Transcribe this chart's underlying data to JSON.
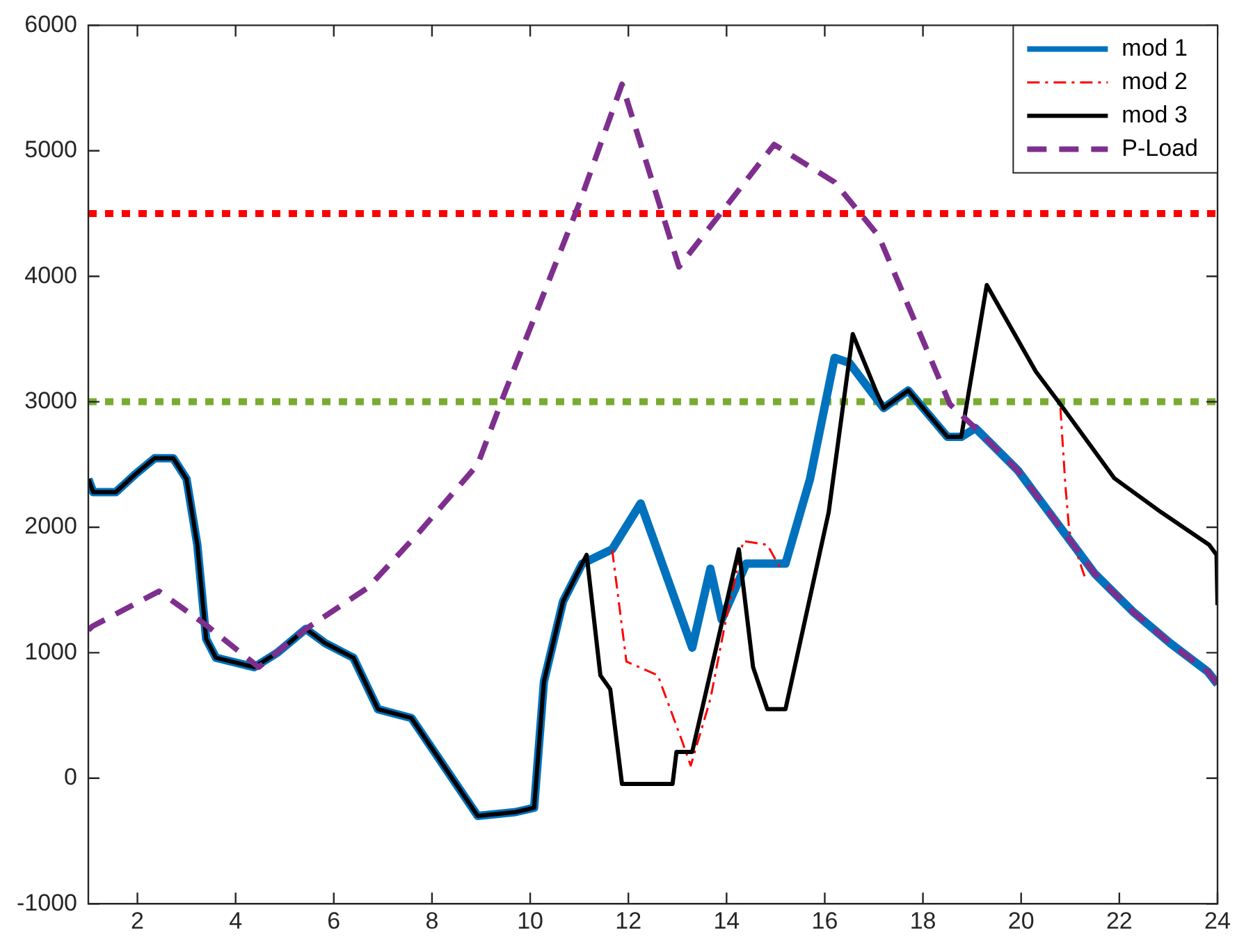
{
  "chart_data": {
    "type": "line",
    "xlim": [
      1,
      24
    ],
    "xticks": [
      2,
      4,
      6,
      8,
      10,
      12,
      14,
      16,
      18,
      20,
      22,
      24
    ],
    "ylim": [
      -1000,
      6000
    ],
    "yticks": [
      -1000,
      0,
      1000,
      2000,
      3000,
      4000,
      5000,
      6000
    ],
    "grid": false,
    "legend": "top right",
    "marker": "none",
    "series": [
      {
        "name": "mod 1",
        "color": "#0072bd",
        "line_style": "solid",
        "x": [
          1,
          1.1,
          1.56,
          1.95,
          2.35,
          2.73,
          3.0,
          3.22,
          3.4,
          3.6,
          4.38,
          4.85,
          5.43,
          5.83,
          6.4,
          6.9,
          7.58,
          8.35,
          8.93,
          9.7,
          10.08,
          10.28,
          10.67,
          11.06,
          11.67,
          12.25,
          13.3,
          13.67,
          13.9,
          14.4,
          15.2,
          15.7,
          16.2,
          16.5,
          17.2,
          17.7,
          18.5,
          18.78,
          19.07,
          19.94,
          20.7,
          21.5,
          22.27,
          23.04,
          23.8,
          24
        ],
        "values": [
          2385,
          2280,
          2280,
          2420,
          2550,
          2550,
          2385,
          1860,
          1110,
          960,
          885,
          1000,
          1190,
          1075,
          960,
          550,
          480,
          35,
          -300,
          -270,
          -235,
          770,
          1410,
          1710,
          1825,
          2190,
          1040,
          1670,
          1265,
          1710,
          1710,
          2385,
          3350,
          3310,
          2950,
          3090,
          2720,
          2720,
          2790,
          2450,
          2050,
          1630,
          1330,
          1075,
          850,
          750
        ]
      },
      {
        "name": "mod 2",
        "color": "#ff0000",
        "line_style": "dashdot",
        "x": [
          11.67,
          11.96,
          12.6,
          13.1,
          13.27,
          13.67,
          13.95,
          14.34,
          14.83,
          15.1,
          null,
          20.8,
          20.9,
          20.98,
          21.3
        ],
        "values": [
          1820,
          930,
          820,
          290,
          100,
          630,
          1190,
          1890,
          1860,
          1670,
          null,
          2950,
          2340,
          1970,
          1600
        ]
      },
      {
        "name": "mod 3",
        "color": "#000000",
        "line_style": "solid",
        "x": [
          1,
          1.1,
          1.56,
          1.95,
          2.35,
          2.73,
          3.0,
          3.22,
          3.4,
          3.6,
          4.38,
          4.85,
          5.43,
          5.83,
          6.4,
          6.9,
          7.58,
          8.35,
          8.93,
          9.7,
          10.08,
          10.28,
          10.67,
          11.15,
          11.43,
          11.63,
          11.87,
          12.9,
          12.98,
          13.3,
          14.25,
          14.54,
          14.83,
          15.2,
          16.08,
          16.57,
          17.04,
          17.2,
          17.7,
          18.5,
          18.78,
          19.3,
          20.3,
          20.8,
          21.9,
          22.85,
          23.83,
          23.98,
          24
        ],
        "values": [
          2385,
          2280,
          2280,
          2420,
          2550,
          2550,
          2385,
          1860,
          1110,
          960,
          885,
          1000,
          1190,
          1075,
          960,
          550,
          480,
          35,
          -300,
          -270,
          -235,
          770,
          1410,
          1780,
          820,
          710,
          -45,
          -45,
          210,
          210,
          1825,
          885,
          550,
          550,
          2120,
          3540,
          3090,
          2950,
          3090,
          2720,
          2720,
          3930,
          3240,
          2980,
          2390,
          2120,
          1860,
          1780,
          1380
        ]
      },
      {
        "name": "P-Load",
        "color": "#7e2f8e",
        "line_style": "dashed",
        "x": [
          1,
          1.08,
          2.44,
          3.4,
          4.47,
          5.43,
          6.7,
          7.76,
          8.93,
          9.5,
          11.0,
          11.87,
          13.03,
          14.97,
          16.2,
          17.1,
          18.55,
          19.07,
          19.94,
          20.7,
          21.5,
          22.27,
          23.04,
          23.8,
          24
        ],
        "values": [
          1180,
          1210,
          1490,
          1220,
          885,
          1190,
          1520,
          1970,
          2500,
          3090,
          4580,
          5530,
          4075,
          5050,
          4750,
          4320,
          2980,
          2790,
          2450,
          2050,
          1630,
          1330,
          1075,
          850,
          750
        ]
      }
    ],
    "ref_lines": [
      {
        "axis": "y",
        "value": 4500,
        "color": "#ff0000",
        "line_style": "dotted"
      },
      {
        "axis": "y",
        "value": 3000,
        "color": "#77ac30",
        "line_style": "dotted"
      }
    ]
  }
}
